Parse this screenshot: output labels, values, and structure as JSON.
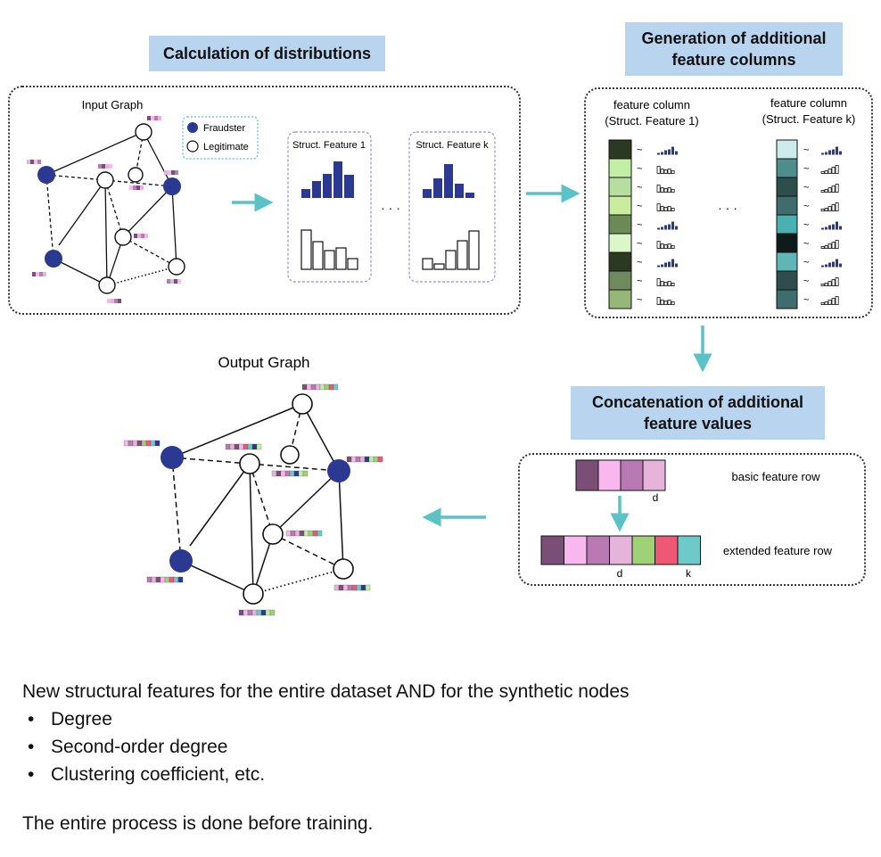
{
  "titles": {
    "calc": "Calculation of distributions",
    "gen_line1": "Generation of additional",
    "gen_line2": "feature columns",
    "concat_line1": "Concatenation of additional",
    "concat_line2": "feature values"
  },
  "input_graph": {
    "label": "Input Graph",
    "legend": {
      "fraudster": "Fraudster",
      "legitimate": "Legitimate"
    }
  },
  "struct_feature_1": "Struct. Feature 1",
  "struct_feature_k": "Struct. Feature k",
  "ellipsis": "· · ·",
  "feature_columns": {
    "col1_line1": "feature column",
    "col1_line2": "(Struct. Feature 1)",
    "colk_line1": "feature column",
    "colk_line2": "(Struct. Feature k)",
    "tilde": "~",
    "col1_colors": [
      "#2a3a22",
      "#c2eea6",
      "#b6dea0",
      "#c9ec9e",
      "#6a8a56",
      "#dbf6c8",
      "#2a3a22",
      "#6f8a5d",
      "#95b777"
    ],
    "colk_colors": [
      "#cdebeb",
      "#4f8c8c",
      "#2e4e4e",
      "#3f6c6c",
      "#4ab0b0",
      "#0f1a1a",
      "#60b6b6",
      "#2e4e4e",
      "#3f6c6c"
    ]
  },
  "concat_panel": {
    "basic_label": "basic feature row",
    "extended_label": "extended feature row",
    "d_label": "d",
    "k_label": "k",
    "basic_colors": [
      "#7b4e78",
      "#f8b7ee",
      "#b979b2",
      "#e6b4db"
    ],
    "extended_colors": [
      "#7b4e78",
      "#f8b7ee",
      "#b979b2",
      "#e6b4db",
      "#9fd177",
      "#ef5874",
      "#6ec9c9"
    ]
  },
  "output_graph": {
    "label": "Output Graph"
  },
  "colors": {
    "fraudster": "#2b3990",
    "arrow": "#5bc2c6",
    "title_bg": "#b9d4ee",
    "bar": "#2b3990"
  },
  "notes": {
    "intro": "New structural features for the entire dataset AND for the synthetic nodes",
    "items": [
      "Degree",
      "Second-order degree",
      "Clustering coefficient, etc."
    ],
    "footer": "The entire process is done before training."
  }
}
